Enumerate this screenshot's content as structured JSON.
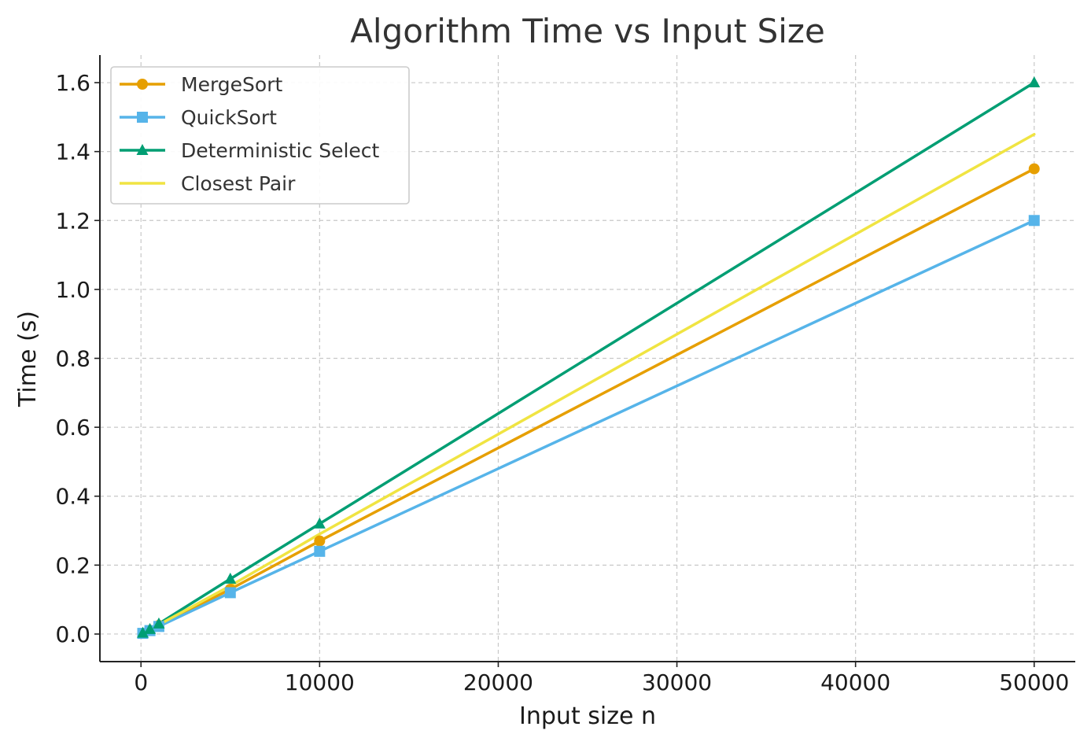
{
  "chart_data": {
    "type": "line",
    "title": "Algorithm Time vs Input Size",
    "xlabel": "Input size n",
    "ylabel": "Time (s)",
    "xlim": [
      -2300,
      52300
    ],
    "ylim": [
      -0.08,
      1.68
    ],
    "x_ticks": [
      0,
      10000,
      20000,
      30000,
      40000,
      50000
    ],
    "x_tick_labels": [
      "0",
      "10000",
      "20000",
      "30000",
      "40000",
      "50000"
    ],
    "y_ticks": [
      0.0,
      0.2,
      0.4,
      0.6,
      0.8,
      1.0,
      1.2,
      1.4,
      1.6
    ],
    "y_tick_labels": [
      "0.0",
      "0.2",
      "0.4",
      "0.6",
      "0.8",
      "1.0",
      "1.2",
      "1.4",
      "1.6"
    ],
    "grid": true,
    "legend_position": "top-left",
    "series": [
      {
        "name": "MergeSort",
        "color": "#E69F00",
        "marker": "circle",
        "x": [
          100,
          500,
          1000,
          5000,
          10000,
          50000
        ],
        "values": [
          0.002,
          0.011,
          0.025,
          0.13,
          0.27,
          1.35
        ]
      },
      {
        "name": "QuickSort",
        "color": "#56B4E9",
        "marker": "square",
        "x": [
          100,
          500,
          1000,
          5000,
          10000,
          50000
        ],
        "values": [
          0.002,
          0.01,
          0.022,
          0.12,
          0.24,
          1.2
        ]
      },
      {
        "name": "Deterministic Select",
        "color": "#009E73",
        "marker": "triangle",
        "x": [
          100,
          500,
          1000,
          5000,
          10000,
          50000
        ],
        "values": [
          0.003,
          0.014,
          0.03,
          0.16,
          0.32,
          1.6
        ]
      },
      {
        "name": "Closest Pair",
        "color": "#F0E442",
        "marker": "none",
        "x": [
          100,
          500,
          1000,
          5000,
          10000,
          50000
        ],
        "values": [
          0.003,
          0.013,
          0.027,
          0.14,
          0.29,
          1.45
        ]
      }
    ]
  }
}
